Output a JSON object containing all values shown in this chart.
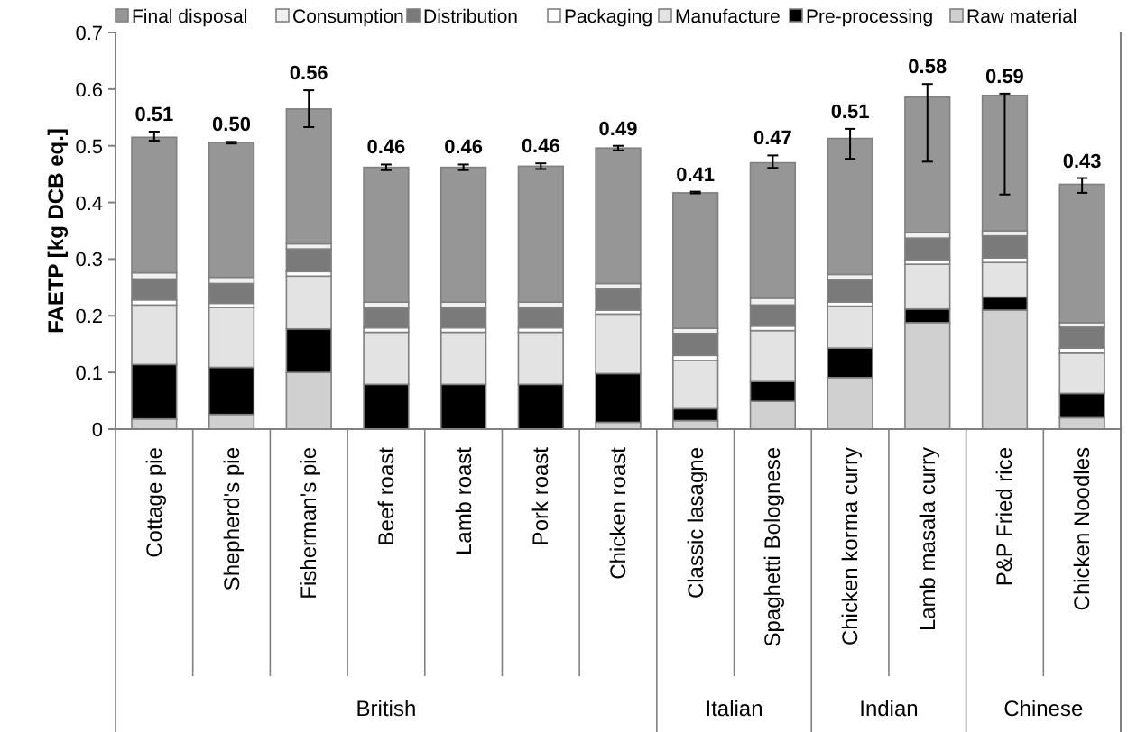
{
  "chart_data": {
    "type": "bar",
    "stacked": true,
    "ylabel": "FAETP  [kg DCB eq.]",
    "categories": [
      "Cottage pie",
      "Shepherd's pie",
      "Fisherman's pie",
      "Beef roast",
      "Lamb roast",
      "Pork roast",
      "Chicken roast",
      "Classic lasagne",
      "Spaghetti Bolognese",
      "Chicken korma curry",
      "Lamb masala curry",
      "P&P Fried rice",
      "Chicken Noodles"
    ],
    "series": [
      {
        "name": "Raw material",
        "color": "#d0d0d0",
        "values": [
          0.018,
          0.026,
          0.1,
          0,
          0,
          0,
          0.012,
          0.015,
          0.049,
          0.091,
          0.188,
          0.21,
          0.02
        ]
      },
      {
        "name": "Pre-processing",
        "color": "#000000",
        "values": [
          0.096,
          0.083,
          0.077,
          0.079,
          0.079,
          0.079,
          0.086,
          0.021,
          0.035,
          0.052,
          0.024,
          0.023,
          0.043
        ]
      },
      {
        "name": "Manufacture",
        "color": "#e3e3e3",
        "values": [
          0.105,
          0.106,
          0.093,
          0.092,
          0.092,
          0.092,
          0.105,
          0.085,
          0.09,
          0.074,
          0.079,
          0.061,
          0.071
        ]
      },
      {
        "name": "Packaging",
        "color": "#ffffff",
        "values": [
          0.009,
          0.007,
          0.008,
          0.008,
          0.008,
          0.008,
          0.007,
          0.009,
          0.008,
          0.007,
          0.008,
          0.008,
          0.009
        ]
      },
      {
        "name": "Distribution",
        "color": "#7a7a7a",
        "values": [
          0.037,
          0.035,
          0.04,
          0.035,
          0.035,
          0.035,
          0.037,
          0.039,
          0.037,
          0.039,
          0.038,
          0.039,
          0.037
        ]
      },
      {
        "name": "Consumption",
        "color": "#f0f0f0",
        "values": [
          0.011,
          0.011,
          0.009,
          0.01,
          0.01,
          0.01,
          0.01,
          0.009,
          0.012,
          0.01,
          0.01,
          0.009,
          0.008
        ]
      },
      {
        "name": "Final disposal",
        "color": "#969696",
        "values": [
          0.239,
          0.238,
          0.238,
          0.238,
          0.238,
          0.24,
          0.239,
          0.239,
          0.239,
          0.24,
          0.239,
          0.239,
          0.244
        ],
        "errors": [
          [
            0.509,
            0.525
          ],
          [
            0.504,
            0.507
          ],
          [
            0.533,
            0.598
          ],
          [
            0.457,
            0.467
          ],
          [
            0.457,
            0.467
          ],
          [
            0.459,
            0.469
          ],
          [
            0.492,
            0.5
          ],
          [
            0.416,
            0.419
          ],
          [
            0.461,
            0.483
          ],
          [
            0.477,
            0.53
          ],
          [
            0.472,
            0.609
          ],
          [
            0.414,
            0.592
          ],
          [
            0.417,
            0.443
          ]
        ]
      }
    ],
    "totals": [
      "0.51",
      "0.50",
      "0.56",
      "0.46",
      "0.46",
      "0.46",
      "0.49",
      "0.41",
      "0.47",
      "0.51",
      "0.58",
      "0.59",
      "0.43"
    ],
    "annotations": [
      "British",
      "Italian",
      "Indian",
      "Chinese"
    ],
    "ylim": [
      0,
      0.7
    ],
    "yticks": [
      0,
      0.1,
      0.2,
      0.3,
      0.4,
      0.5,
      0.6,
      0.7
    ],
    "grid": false,
    "legend": "top"
  }
}
